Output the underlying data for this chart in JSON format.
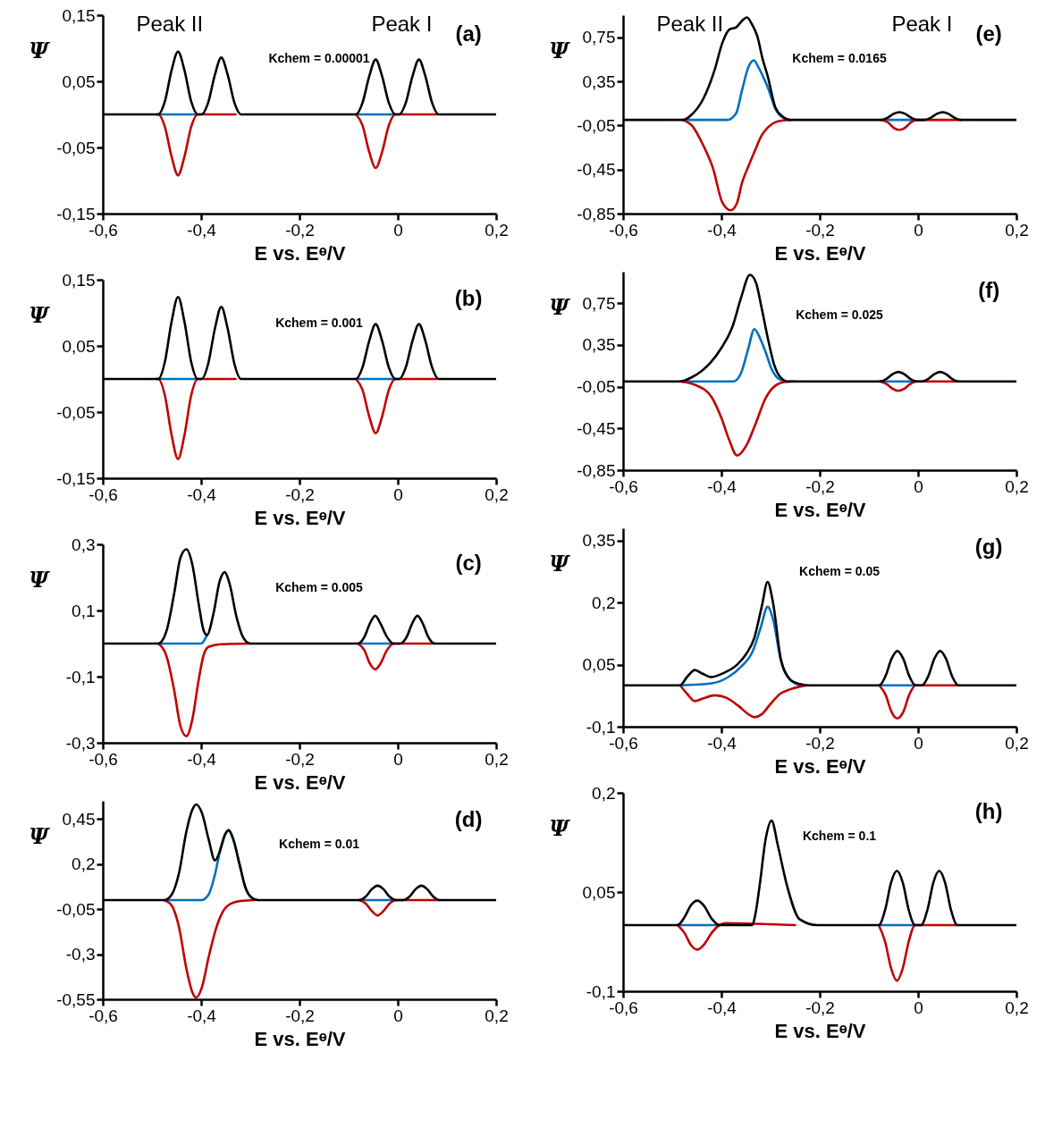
{
  "chart_data": [
    {
      "type": "line",
      "xlabel": "E vs. Eᶱ/V",
      "ylabel": "Ψ",
      "xlim": [
        -0.6,
        0.2
      ],
      "ylim": [
        -0.15,
        0.15
      ],
      "xticks": [
        {
          "value": -0.6,
          "label": "-0,6"
        },
        {
          "value": -0.4,
          "label": "-0,4"
        },
        {
          "value": -0.2,
          "label": "-0,2"
        },
        {
          "value": 0,
          "label": "0"
        },
        {
          "value": 0.2,
          "label": "0,2"
        }
      ],
      "yticks": [
        {
          "value": -0.15,
          "label": "-0,15"
        },
        {
          "value": -0.05,
          "label": "-0,05"
        },
        {
          "value": 0.05,
          "label": "0,05"
        },
        {
          "value": 0.15,
          "label": "0,15"
        }
      ],
      "annotations": [
        "(a)",
        "Kchem = 0.00001",
        "Peak II",
        "Peak I"
      ],
      "series": [
        {
          "color": "#0070c0",
          "x": [
            -0.49,
            -0.407,
            -0.2,
            -0.085,
            -0.005
          ],
          "values": [
            0,
            0,
            null,
            0,
            0
          ]
        },
        {
          "color": "#c00000",
          "x": [
            -0.49,
            -0.487,
            -0.474,
            -0.46,
            -0.447,
            -0.434,
            -0.42,
            -0.407,
            -0.33,
            -0.2,
            -0.085,
            -0.072,
            -0.058,
            -0.045,
            -0.032,
            -0.018,
            -0.005,
            0.08
          ],
          "values": [
            0,
            0,
            -0.018,
            -0.064,
            -0.092,
            -0.064,
            -0.018,
            0,
            0,
            null,
            0,
            -0.016,
            -0.057,
            -0.081,
            -0.057,
            -0.016,
            0,
            0
          ]
        },
        {
          "color": "#000000",
          "x": [
            -0.6,
            -0.487,
            -0.474,
            -0.46,
            -0.447,
            -0.434,
            -0.42,
            -0.407,
            -0.399,
            -0.386,
            -0.372,
            -0.359,
            -0.346,
            -0.332,
            -0.319,
            -0.085,
            -0.072,
            -0.058,
            -0.045,
            -0.032,
            -0.018,
            -0.005,
            0.003,
            0.016,
            0.03,
            0.043,
            0.056,
            0.07,
            0.083,
            0.2
          ],
          "values": [
            0,
            0,
            0.019,
            0.067,
            0.095,
            0.067,
            0.019,
            0,
            0,
            0.017,
            0.06,
            0.086,
            0.06,
            0.017,
            0,
            0,
            0.017,
            0.058,
            0.083,
            0.058,
            0.017,
            0,
            0,
            0.017,
            0.058,
            0.083,
            0.058,
            0.017,
            0,
            0
          ]
        }
      ]
    },
    {
      "type": "line",
      "xlabel": "E vs. Eᶱ/V",
      "ylabel": "Ψ",
      "xlim": [
        -0.6,
        0.2
      ],
      "ylim": [
        -0.15,
        0.15
      ],
      "xticks": [
        {
          "value": -0.6,
          "label": "-0,6"
        },
        {
          "value": -0.4,
          "label": "-0,4"
        },
        {
          "value": -0.2,
          "label": "-0,2"
        },
        {
          "value": 0,
          "label": "0"
        },
        {
          "value": 0.2,
          "label": "0,2"
        }
      ],
      "yticks": [
        {
          "value": -0.15,
          "label": "-0,15"
        },
        {
          "value": -0.05,
          "label": "-0,05"
        },
        {
          "value": 0.05,
          "label": "0,05"
        },
        {
          "value": 0.15,
          "label": "0,15"
        }
      ],
      "annotations": [
        "(b)",
        "Kchem = 0.001"
      ],
      "series": [
        {
          "color": "#0070c0",
          "x": [
            -0.49,
            -0.407,
            -0.2,
            -0.085,
            -0.005
          ],
          "values": [
            0,
            0,
            null,
            0,
            0
          ]
        },
        {
          "color": "#c00000",
          "x": [
            -0.49,
            -0.487,
            -0.474,
            -0.46,
            -0.447,
            -0.434,
            -0.42,
            -0.407,
            -0.33,
            -0.2,
            -0.085,
            -0.072,
            -0.058,
            -0.045,
            -0.032,
            -0.018,
            -0.005,
            0.08
          ],
          "values": [
            0,
            0,
            -0.024,
            -0.085,
            -0.121,
            -0.085,
            -0.024,
            0,
            0,
            null,
            0,
            -0.016,
            -0.057,
            -0.082,
            -0.057,
            -0.016,
            0,
            0
          ]
        },
        {
          "color": "#000000",
          "x": [
            -0.6,
            -0.487,
            -0.474,
            -0.46,
            -0.447,
            -0.434,
            -0.42,
            -0.407,
            -0.399,
            -0.386,
            -0.372,
            -0.359,
            -0.346,
            -0.332,
            -0.319,
            -0.085,
            -0.072,
            -0.058,
            -0.045,
            -0.032,
            -0.018,
            -0.005,
            0.003,
            0.016,
            0.03,
            0.043,
            0.056,
            0.07,
            0.083,
            0.2
          ],
          "values": [
            0,
            0,
            0.025,
            0.087,
            0.124,
            0.087,
            0.025,
            0,
            0,
            0.022,
            0.076,
            0.109,
            0.076,
            0.022,
            0,
            0,
            0.017,
            0.058,
            0.083,
            0.058,
            0.017,
            0,
            0,
            0.017,
            0.058,
            0.083,
            0.058,
            0.017,
            0,
            0
          ]
        }
      ]
    },
    {
      "type": "line",
      "xlabel": "E vs. Eᶱ/V",
      "ylabel": "Ψ",
      "xlim": [
        -0.6,
        0.2
      ],
      "ylim": [
        -0.3,
        0.3
      ],
      "xticks": [
        {
          "value": -0.6,
          "label": "-0,6"
        },
        {
          "value": -0.4,
          "label": "-0,4"
        },
        {
          "value": -0.2,
          "label": "-0,2"
        },
        {
          "value": 0,
          "label": "0"
        },
        {
          "value": 0.2,
          "label": "0,2"
        }
      ],
      "yticks": [
        {
          "value": -0.3,
          "label": "-0,3"
        },
        {
          "value": -0.1,
          "label": "-0,1"
        },
        {
          "value": 0.1,
          "label": "0,1"
        },
        {
          "value": 0.3,
          "label": "0,3"
        }
      ],
      "annotations": [
        "(c)",
        "Kchem = 0.005"
      ],
      "series": [
        {
          "color": "#0070c0",
          "x": [
            -0.487,
            -0.4,
            -0.388,
            -0.2,
            -0.081,
            -0.008
          ],
          "values": [
            0,
            0,
            0.026,
            null,
            0,
            0
          ]
        },
        {
          "color": "#c00000",
          "x": [
            -0.487,
            -0.47,
            -0.455,
            -0.442,
            -0.43,
            -0.418,
            -0.405,
            -0.395,
            -0.385,
            -0.36,
            -0.3,
            -0.2,
            -0.081,
            -0.068,
            -0.057,
            -0.046,
            -0.035,
            -0.022,
            -0.008,
            0.075
          ],
          "values": [
            0,
            -0.04,
            -0.14,
            -0.25,
            -0.28,
            -0.23,
            -0.11,
            -0.035,
            -0.01,
            -0.002,
            0,
            null,
            0,
            -0.02,
            -0.06,
            -0.078,
            -0.06,
            -0.02,
            0,
            0
          ]
        },
        {
          "color": "#000000",
          "x": [
            -0.6,
            -0.487,
            -0.47,
            -0.455,
            -0.442,
            -0.43,
            -0.418,
            -0.405,
            -0.395,
            -0.388,
            -0.375,
            -0.362,
            -0.352,
            -0.342,
            -0.328,
            -0.315,
            -0.3,
            -0.081,
            -0.068,
            -0.057,
            -0.046,
            -0.035,
            -0.022,
            -0.008,
            0.005,
            0.018,
            0.029,
            0.04,
            0.051,
            0.062,
            0.075,
            0.2
          ],
          "values": [
            0,
            0,
            0.04,
            0.15,
            0.26,
            0.285,
            0.24,
            0.12,
            0.04,
            0.026,
            0.09,
            0.19,
            0.216,
            0.18,
            0.08,
            0.02,
            0,
            0,
            0.02,
            0.06,
            0.084,
            0.06,
            0.02,
            0,
            0,
            0.02,
            0.06,
            0.084,
            0.06,
            0.02,
            0,
            0
          ]
        }
      ]
    },
    {
      "type": "line",
      "xlabel": "E vs. Eᶱ/V",
      "ylabel": "Ψ",
      "xlim": [
        -0.6,
        0.2
      ],
      "ylim": [
        -0.55,
        0.55
      ],
      "xticks": [
        {
          "value": -0.6,
          "label": "-0,6"
        },
        {
          "value": -0.4,
          "label": "-0,4"
        },
        {
          "value": -0.2,
          "label": "-0,2"
        },
        {
          "value": 0,
          "label": "0"
        },
        {
          "value": 0.2,
          "label": "0,2"
        }
      ],
      "yticks": [
        {
          "value": -0.55,
          "label": "-0,55"
        },
        {
          "value": -0.3,
          "label": "-0,3"
        },
        {
          "value": -0.05,
          "label": "-0,05"
        },
        {
          "value": 0.2,
          "label": "0,2"
        },
        {
          "value": 0.45,
          "label": "0,45"
        }
      ],
      "annotations": [
        "(d)",
        "Kchem = 0.01"
      ],
      "series": [
        {
          "color": "#0070c0",
          "x": [
            -0.475,
            -0.4,
            -0.385,
            -0.372,
            -0.36,
            -0.344,
            -0.335,
            -0.322,
            -0.31,
            -0.298,
            -0.285,
            -0.2,
            -0.078,
            -0.004
          ],
          "values": [
            0,
            0,
            0.03,
            0.14,
            0.29,
            0.387,
            0.34,
            0.2,
            0.07,
            0.015,
            0,
            null,
            0,
            0
          ]
        },
        {
          "color": "#c00000",
          "x": [
            -0.475,
            -0.46,
            -0.445,
            -0.43,
            -0.418,
            -0.41,
            -0.398,
            -0.385,
            -0.37,
            -0.355,
            -0.34,
            -0.32,
            -0.29,
            -0.2,
            -0.078,
            -0.065,
            -0.053,
            -0.041,
            -0.029,
            -0.017,
            -0.004,
            0.085
          ],
          "values": [
            0,
            -0.03,
            -0.15,
            -0.38,
            -0.51,
            -0.54,
            -0.48,
            -0.32,
            -0.16,
            -0.06,
            -0.02,
            -0.005,
            0,
            null,
            0,
            -0.02,
            -0.06,
            -0.085,
            -0.06,
            -0.02,
            0,
            0
          ]
        },
        {
          "color": "#000000",
          "x": [
            -0.6,
            -0.475,
            -0.46,
            -0.445,
            -0.43,
            -0.418,
            -0.41,
            -0.398,
            -0.385,
            -0.372,
            -0.362,
            -0.352,
            -0.344,
            -0.335,
            -0.322,
            -0.31,
            -0.298,
            -0.285,
            -0.078,
            -0.065,
            -0.053,
            -0.041,
            -0.029,
            -0.017,
            -0.004,
            0.011,
            0.024,
            0.036,
            0.048,
            0.06,
            0.072,
            0.085,
            0.2
          ],
          "values": [
            0,
            0,
            0.03,
            0.15,
            0.38,
            0.5,
            0.53,
            0.48,
            0.34,
            0.22,
            0.27,
            0.36,
            0.387,
            0.34,
            0.2,
            0.07,
            0.015,
            0,
            0,
            0.02,
            0.06,
            0.08,
            0.06,
            0.02,
            0,
            0,
            0.02,
            0.06,
            0.08,
            0.06,
            0.02,
            0,
            0
          ]
        }
      ]
    },
    {
      "type": "line",
      "xlabel": "E vs. Eᶱ/V",
      "ylabel": "Ψ",
      "xlim": [
        -0.6,
        0.2
      ],
      "ylim": [
        -0.85,
        0.95
      ],
      "xticks": [
        {
          "value": -0.6,
          "label": "-0,6"
        },
        {
          "value": -0.4,
          "label": "-0,4"
        },
        {
          "value": -0.2,
          "label": "-0,2"
        },
        {
          "value": 0,
          "label": "0"
        },
        {
          "value": 0.2,
          "label": "0,2"
        }
      ],
      "yticks": [
        {
          "value": -0.85,
          "label": "-0,85"
        },
        {
          "value": -0.45,
          "label": "-0,45"
        },
        {
          "value": -0.05,
          "label": "-0,05"
        },
        {
          "value": 0.35,
          "label": "0,35"
        },
        {
          "value": 0.75,
          "label": "0,75"
        }
      ],
      "annotations": [
        "(e)",
        "Kchem = 0.0165",
        "Peak II",
        "Peak I"
      ],
      "series": [
        {
          "color": "#0070c0",
          "x": [
            -0.478,
            -0.388,
            -0.37,
            -0.358,
            -0.345,
            -0.334,
            -0.325,
            -0.316,
            -0.306,
            -0.29,
            -0.275,
            -0.26,
            -0.2,
            -0.075,
            -0.001
          ],
          "values": [
            0,
            0,
            0.06,
            0.27,
            0.48,
            0.54,
            0.48,
            0.4,
            0.3,
            0.1,
            0.02,
            0,
            null,
            0,
            0
          ]
        },
        {
          "color": "#c00000",
          "x": [
            -0.478,
            -0.46,
            -0.437,
            -0.417,
            -0.398,
            -0.381,
            -0.368,
            -0.358,
            -0.345,
            -0.332,
            -0.318,
            -0.306,
            -0.29,
            -0.275,
            -0.26,
            -0.2,
            -0.075,
            -0.062,
            -0.05,
            -0.038,
            -0.026,
            -0.014,
            -0.001,
            0.087
          ],
          "values": [
            0,
            -0.05,
            -0.23,
            -0.44,
            -0.75,
            -0.82,
            -0.75,
            -0.57,
            -0.42,
            -0.28,
            -0.14,
            -0.07,
            -0.02,
            -0.005,
            0,
            null,
            0,
            -0.02,
            -0.07,
            -0.09,
            -0.07,
            -0.02,
            0,
            0
          ]
        },
        {
          "color": "#000000",
          "x": [
            -0.6,
            -0.478,
            -0.46,
            -0.437,
            -0.414,
            -0.398,
            -0.384,
            -0.37,
            -0.358,
            -0.348,
            -0.337,
            -0.327,
            -0.316,
            -0.306,
            -0.29,
            -0.275,
            -0.26,
            -0.075,
            -0.062,
            -0.05,
            -0.038,
            -0.026,
            -0.014,
            -0.001,
            0.013,
            0.026,
            0.038,
            0.05,
            0.062,
            0.074,
            0.087,
            0.2
          ],
          "values": [
            0,
            0,
            0.05,
            0.19,
            0.45,
            0.7,
            0.82,
            0.84,
            0.9,
            0.93,
            0.86,
            0.76,
            0.55,
            0.4,
            0.11,
            0.03,
            0,
            0,
            0.02,
            0.055,
            0.07,
            0.055,
            0.02,
            0,
            0,
            0.02,
            0.055,
            0.07,
            0.055,
            0.02,
            0,
            0
          ]
        }
      ]
    },
    {
      "type": "line",
      "xlabel": "E vs. Eᶱ/V",
      "ylabel": "Ψ",
      "xlim": [
        -0.6,
        0.2
      ],
      "ylim": [
        -0.85,
        1.05
      ],
      "xticks": [
        {
          "value": -0.6,
          "label": "-0,6"
        },
        {
          "value": -0.4,
          "label": "-0,4"
        },
        {
          "value": -0.2,
          "label": "-0,2"
        },
        {
          "value": 0,
          "label": "0"
        },
        {
          "value": 0.2,
          "label": "0,2"
        }
      ],
      "yticks": [
        {
          "value": -0.85,
          "label": "-0,85"
        },
        {
          "value": -0.45,
          "label": "-0,45"
        },
        {
          "value": -0.05,
          "label": "-0,05"
        },
        {
          "value": 0.35,
          "label": "0,35"
        },
        {
          "value": 0.75,
          "label": "0,75"
        }
      ],
      "annotations": [
        "(f)",
        "Kchem = 0.025"
      ],
      "series": [
        {
          "color": "#0070c0",
          "x": [
            -0.484,
            -0.375,
            -0.36,
            -0.345,
            -0.333,
            -0.322,
            -0.31,
            -0.298,
            -0.285,
            -0.27,
            -0.2,
            -0.077,
            -0.003
          ],
          "values": [
            0,
            0,
            0.08,
            0.32,
            0.5,
            0.42,
            0.28,
            0.12,
            0.03,
            0,
            null,
            0,
            0
          ]
        },
        {
          "color": "#c00000",
          "x": [
            -0.484,
            -0.45,
            -0.42,
            -0.4,
            -0.385,
            -0.368,
            -0.35,
            -0.33,
            -0.31,
            -0.29,
            -0.27,
            -0.25,
            -0.2,
            -0.077,
            -0.064,
            -0.052,
            -0.04,
            -0.028,
            -0.016,
            -0.003,
            0.082
          ],
          "values": [
            0,
            -0.04,
            -0.15,
            -0.35,
            -0.55,
            -0.71,
            -0.62,
            -0.4,
            -0.16,
            -0.04,
            -0.005,
            0,
            null,
            0,
            -0.025,
            -0.07,
            -0.09,
            -0.07,
            -0.025,
            0,
            0
          ]
        },
        {
          "color": "#000000",
          "x": [
            -0.6,
            -0.484,
            -0.46,
            -0.44,
            -0.422,
            -0.4,
            -0.377,
            -0.36,
            -0.342,
            -0.33,
            -0.318,
            -0.305,
            -0.292,
            -0.28,
            -0.265,
            -0.077,
            -0.064,
            -0.052,
            -0.04,
            -0.028,
            -0.016,
            -0.003,
            0.008,
            0.021,
            0.033,
            0.045,
            0.057,
            0.069,
            0.082,
            0.2
          ],
          "values": [
            0,
            0,
            0.04,
            0.1,
            0.18,
            0.32,
            0.53,
            0.8,
            1.02,
            0.95,
            0.7,
            0.4,
            0.15,
            0.04,
            0,
            0,
            0.025,
            0.07,
            0.09,
            0.07,
            0.025,
            0,
            0,
            0.025,
            0.07,
            0.09,
            0.07,
            0.025,
            0,
            0
          ]
        }
      ]
    },
    {
      "type": "line",
      "xlabel": "E vs. Eᶱ/V",
      "ylabel": "Ψ",
      "xlim": [
        -0.6,
        0.2
      ],
      "ylim": [
        -0.1,
        0.38
      ],
      "xticks": [
        {
          "value": -0.6,
          "label": "-0,6"
        },
        {
          "value": -0.4,
          "label": "-0,4"
        },
        {
          "value": -0.2,
          "label": "-0,2"
        },
        {
          "value": 0,
          "label": "0"
        },
        {
          "value": 0.2,
          "label": "0,2"
        }
      ],
      "yticks": [
        {
          "value": -0.1,
          "label": "-0,1"
        },
        {
          "value": 0.05,
          "label": "0,05"
        },
        {
          "value": 0.2,
          "label": "0,2"
        },
        {
          "value": 0.35,
          "label": "0,35"
        }
      ],
      "annotations": [
        "(g)",
        "Kchem = 0.05"
      ],
      "series": [
        {
          "color": "#0070c0",
          "x": [
            -0.484,
            -0.42,
            -0.386,
            -0.36,
            -0.336,
            -0.32,
            -0.306,
            -0.295,
            -0.279,
            -0.261,
            -0.24,
            -0.2,
            -0.079,
            -0.005
          ],
          "values": [
            0,
            0.005,
            0.02,
            0.045,
            0.083,
            0.14,
            0.19,
            0.16,
            0.06,
            0.015,
            0,
            null,
            0,
            0
          ]
        },
        {
          "color": "#c00000",
          "x": [
            -0.484,
            -0.47,
            -0.454,
            -0.438,
            -0.413,
            -0.39,
            -0.365,
            -0.345,
            -0.333,
            -0.318,
            -0.3,
            -0.28,
            -0.261,
            -0.24,
            -0.226,
            -0.2,
            -0.079,
            -0.066,
            -0.054,
            -0.042,
            -0.03,
            -0.018,
            -0.005,
            0.082
          ],
          "values": [
            0,
            -0.02,
            -0.038,
            -0.032,
            -0.024,
            -0.03,
            -0.05,
            -0.07,
            -0.077,
            -0.07,
            -0.045,
            -0.02,
            -0.01,
            -0.003,
            0,
            null,
            0,
            -0.023,
            -0.064,
            -0.08,
            -0.064,
            -0.023,
            0,
            0
          ]
        },
        {
          "color": "#000000",
          "x": [
            -0.6,
            -0.484,
            -0.47,
            -0.454,
            -0.438,
            -0.422,
            -0.395,
            -0.368,
            -0.35,
            -0.333,
            -0.318,
            -0.306,
            -0.295,
            -0.279,
            -0.261,
            -0.24,
            -0.226,
            -0.079,
            -0.066,
            -0.054,
            -0.042,
            -0.03,
            -0.018,
            -0.005,
            0.008,
            0.021,
            0.033,
            0.045,
            0.057,
            0.069,
            0.082,
            0.2
          ],
          "values": [
            0,
            0,
            0.02,
            0.037,
            0.028,
            0.02,
            0.03,
            0.05,
            0.075,
            0.115,
            0.19,
            0.25,
            0.2,
            0.063,
            0.015,
            0.003,
            0,
            0,
            0.023,
            0.064,
            0.083,
            0.064,
            0.023,
            0,
            0,
            0.023,
            0.064,
            0.083,
            0.064,
            0.023,
            0,
            0
          ]
        }
      ]
    },
    {
      "type": "line",
      "xlabel": "E vs. Eᶱ/V",
      "ylabel": "Ψ",
      "xlim": [
        -0.6,
        0.2
      ],
      "ylim": [
        -0.1,
        0.2
      ],
      "xticks": [
        {
          "value": -0.6,
          "label": "-0,6"
        },
        {
          "value": -0.4,
          "label": "-0,4"
        },
        {
          "value": -0.2,
          "label": "-0,2"
        },
        {
          "value": 0,
          "label": "0"
        },
        {
          "value": 0.2,
          "label": "0,2"
        }
      ],
      "yticks": [
        {
          "value": -0.1,
          "label": "-0,1"
        },
        {
          "value": 0.05,
          "label": "0,05"
        },
        {
          "value": 0.2,
          "label": "0,2"
        }
      ],
      "annotations": [
        "(h)",
        "Kchem = 0.1"
      ],
      "series": [
        {
          "color": "#0070c0",
          "x": [
            -0.489,
            -0.404,
            -0.2,
            -0.08,
            -0.006
          ],
          "values": [
            0,
            0,
            null,
            0,
            0
          ]
        },
        {
          "color": "#c00000",
          "x": [
            -0.489,
            -0.475,
            -0.462,
            -0.449,
            -0.436,
            -0.42,
            -0.404,
            -0.39,
            -0.33,
            -0.25,
            -0.2,
            -0.08,
            -0.067,
            -0.055,
            -0.043,
            -0.031,
            -0.019,
            -0.006,
            0.08
          ],
          "values": [
            0,
            -0.012,
            -0.03,
            -0.037,
            -0.03,
            -0.012,
            0,
            0.003,
            0.002,
            0,
            null,
            0,
            -0.025,
            -0.065,
            -0.084,
            -0.065,
            -0.025,
            0,
            0
          ]
        },
        {
          "color": "#000000",
          "x": [
            -0.6,
            -0.489,
            -0.475,
            -0.462,
            -0.449,
            -0.436,
            -0.42,
            -0.404,
            -0.338,
            -0.33,
            -0.322,
            -0.31,
            -0.298,
            -0.285,
            -0.267,
            -0.241,
            -0.205,
            -0.08,
            -0.067,
            -0.055,
            -0.043,
            -0.031,
            -0.019,
            -0.006,
            0.006,
            0.019,
            0.031,
            0.043,
            0.055,
            0.067,
            0.08,
            0.2
          ],
          "values": [
            0,
            0,
            0.012,
            0.03,
            0.037,
            0.03,
            0.01,
            0,
            0,
            0.02,
            0.061,
            0.13,
            0.158,
            0.12,
            0.061,
            0.009,
            0,
            0,
            0.023,
            0.064,
            0.082,
            0.064,
            0.023,
            0,
            0,
            0.023,
            0.064,
            0.082,
            0.064,
            0.023,
            0,
            0
          ]
        }
      ]
    }
  ]
}
